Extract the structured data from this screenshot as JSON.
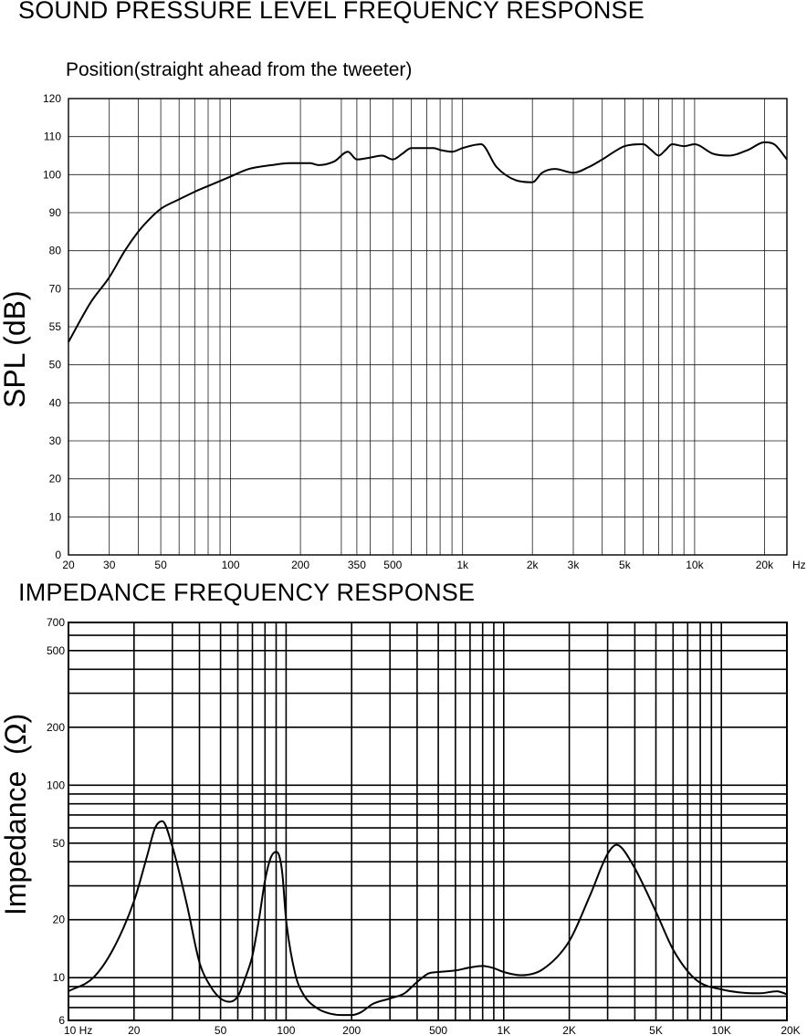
{
  "chart_data": [
    {
      "type": "line",
      "title": "SOUND PRESSURE LEVEL FREQUENCY RESPONSE",
      "subtitle": "Position(straight ahead from the tweeter)",
      "ylabel": "SPL  (dB)",
      "x_scale": "log",
      "xlim": [
        20,
        25000
      ],
      "x_ticks": [
        {
          "value": 20,
          "label": "20"
        },
        {
          "value": 30,
          "label": "30"
        },
        {
          "value": 50,
          "label": "50"
        },
        {
          "value": 100,
          "label": "100"
        },
        {
          "value": 200,
          "label": "200"
        },
        {
          "value": 350,
          "label": "350"
        },
        {
          "value": 500,
          "label": "500"
        },
        {
          "value": 1000,
          "label": "1k"
        },
        {
          "value": 2000,
          "label": "2k"
        },
        {
          "value": 3000,
          "label": "3k"
        },
        {
          "value": 5000,
          "label": "5k"
        },
        {
          "value": 10000,
          "label": "10k"
        },
        {
          "value": 20000,
          "label": "20k"
        }
      ],
      "x_unit_label": "Hz",
      "y_ticks": [
        "0",
        "10",
        "20",
        "30",
        "40",
        "50",
        "55",
        "70",
        "80",
        "90",
        "100",
        "110",
        "120"
      ],
      "grid": true,
      "series": [
        {
          "x": [
            20,
            25,
            30,
            35,
            40,
            45,
            50,
            60,
            70,
            80,
            100,
            120,
            150,
            180,
            200,
            220,
            240,
            280,
            320,
            350,
            400,
            450,
            500,
            550,
            600,
            650,
            700,
            750,
            800,
            900,
            1000,
            1200,
            1400,
            1700,
            2000,
            2200,
            2500,
            3000,
            3500,
            4000,
            4500,
            5000,
            6000,
            6500,
            7000,
            7500,
            8000,
            9000,
            10000,
            12000,
            14000,
            17000,
            20000,
            22000,
            25000
          ],
          "y": [
            56,
            66.5,
            73,
            80,
            85,
            88.5,
            91,
            93.5,
            95.5,
            97,
            99.5,
            101.5,
            102.5,
            103,
            103,
            103,
            102.5,
            103.5,
            106,
            104,
            104.5,
            105,
            104,
            105.5,
            107,
            107,
            107,
            107,
            106.5,
            106,
            107,
            108,
            102,
            98.5,
            98,
            100.5,
            101.5,
            100.5,
            102,
            104,
            106,
            107.5,
            108,
            106.5,
            105,
            106.5,
            108,
            107.5,
            108,
            105.5,
            105,
            106.5,
            108.5,
            108,
            104
          ]
        }
      ]
    },
    {
      "type": "line",
      "title": "IMPEDANCE FREQUENCY RESPONSE",
      "ylabel": "Impedance  (Ω)",
      "x_scale": "log",
      "y_scale": "log",
      "xlim": [
        10,
        20000
      ],
      "ylim": [
        6,
        700
      ],
      "x_ticks": [
        {
          "value": 10,
          "label": "10  Hz"
        },
        {
          "value": 20,
          "label": "20"
        },
        {
          "value": 50,
          "label": "50"
        },
        {
          "value": 100,
          "label": "100"
        },
        {
          "value": 200,
          "label": "200"
        },
        {
          "value": 500,
          "label": "500"
        },
        {
          "value": 1000,
          "label": "1K"
        },
        {
          "value": 2000,
          "label": "2K"
        },
        {
          "value": 5000,
          "label": "5K"
        },
        {
          "value": 10000,
          "label": "10K"
        },
        {
          "value": 20000,
          "label": "20K"
        }
      ],
      "y_ticks": [
        {
          "value": 6,
          "label": "6"
        },
        {
          "value": 10,
          "label": "10"
        },
        {
          "value": 20,
          "label": "20"
        },
        {
          "value": 50,
          "label": "50"
        },
        {
          "value": 100,
          "label": "100"
        },
        {
          "value": 200,
          "label": "200"
        },
        {
          "value": 500,
          "label": "500"
        },
        {
          "value": 700,
          "label": "700"
        }
      ],
      "grid": true,
      "series": [
        {
          "x": [
            10,
            13,
            16,
            20,
            23,
            25,
            27,
            30,
            35,
            40,
            45,
            50,
            55,
            60,
            65,
            70,
            75,
            80,
            85,
            90,
            93,
            96,
            100,
            110,
            120,
            140,
            160,
            180,
            200,
            220,
            250,
            300,
            350,
            400,
            450,
            500,
            600,
            700,
            800,
            900,
            1000,
            1200,
            1500,
            2000,
            2500,
            3000,
            3300,
            3500,
            4000,
            5000,
            6000,
            7000,
            8000,
            10000,
            12000,
            15000,
            18000,
            20000
          ],
          "y": [
            8.5,
            10,
            14,
            25,
            43,
            60,
            65,
            48,
            24,
            12,
            9,
            7.8,
            7.5,
            8,
            10,
            13,
            20,
            32,
            42,
            45,
            43,
            35,
            20,
            10.5,
            8.2,
            6.9,
            6.5,
            6.4,
            6.4,
            6.6,
            7.3,
            7.8,
            8.3,
            9.5,
            10.5,
            10.7,
            10.9,
            11.3,
            11.5,
            11.2,
            10.7,
            10.3,
            11,
            15.5,
            27,
            44,
            49,
            47,
            37,
            22,
            14,
            10.8,
            9.4,
            8.7,
            8.4,
            8.3,
            8.5,
            8.2
          ]
        }
      ]
    }
  ]
}
